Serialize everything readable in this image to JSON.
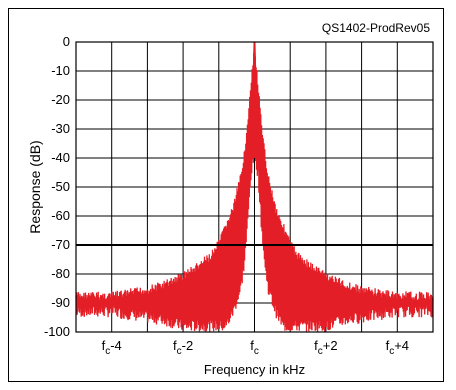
{
  "chart_data": {
    "type": "line",
    "title": "QS1402-ProdRev05",
    "xlabel": "Frequency in kHz",
    "ylabel": "Response (dB)",
    "xlim": [
      -5,
      5
    ],
    "ylim": [
      -100,
      0
    ],
    "x_ticks": [
      {
        "value": -4,
        "base": "f",
        "sub": "c",
        "suffix": "-4"
      },
      {
        "value": -2,
        "base": "f",
        "sub": "c",
        "suffix": "-2"
      },
      {
        "value": 0,
        "base": "f",
        "sub": "c",
        "suffix": ""
      },
      {
        "value": 2,
        "base": "f",
        "sub": "c",
        "suffix": "+2"
      },
      {
        "value": 4,
        "base": "f",
        "sub": "c",
        "suffix": "+4"
      }
    ],
    "y_ticks": [
      0,
      -10,
      -20,
      -30,
      -40,
      -50,
      -60,
      -70,
      -80,
      -90,
      -100
    ],
    "grid": true,
    "reference_line_db": -70,
    "series": [
      {
        "color": "#e41e26",
        "envelope": {
          "x": [
            -5,
            -4.5,
            -4,
            -3.5,
            -3,
            -2.5,
            -2,
            -1.6,
            -1.2,
            -1.0,
            -0.8,
            -0.6,
            -0.4,
            -0.3,
            -0.2,
            -0.1,
            0,
            0.1,
            0.2,
            0.3,
            0.4,
            0.6,
            0.8,
            1.0,
            1.2,
            1.6,
            2,
            2.5,
            3,
            3.5,
            4,
            4.5,
            5
          ],
          "upper": [
            -86,
            -86,
            -86,
            -85,
            -84,
            -82,
            -79,
            -76,
            -72,
            -68,
            -62,
            -56,
            -46,
            -38,
            -28,
            -14,
            0,
            -14,
            -28,
            -38,
            -46,
            -56,
            -62,
            -68,
            -72,
            -76,
            -79,
            -82,
            -84,
            -85,
            -86,
            -86,
            -86
          ],
          "lower": [
            -95,
            -95,
            -95,
            -96,
            -97,
            -98,
            -100,
            -100,
            -100,
            -100,
            -100,
            -95,
            -88,
            -80,
            -66,
            -48,
            -40,
            -48,
            -66,
            -80,
            -88,
            -95,
            -100,
            -100,
            -100,
            -100,
            -100,
            -98,
            -97,
            -96,
            -95,
            -95,
            -95
          ]
        }
      }
    ]
  }
}
